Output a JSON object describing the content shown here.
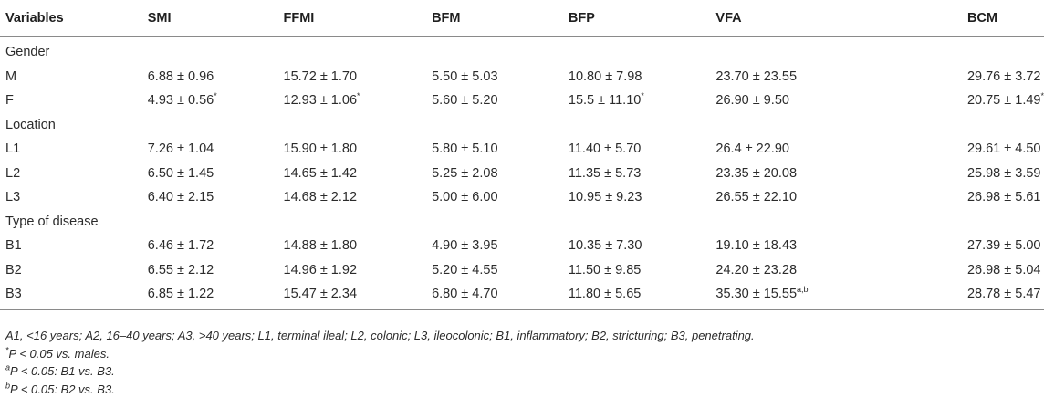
{
  "header": [
    "Variables",
    "SMI",
    "FFMI",
    "BFM",
    "BFP",
    "VFA",
    "BCM"
  ],
  "rows": [
    {
      "type": "section",
      "label": "Gender"
    },
    {
      "type": "data",
      "label": "M",
      "cells": [
        {
          "v": "6.88 ± 0.96",
          "s": ""
        },
        {
          "v": "15.72 ± 1.70",
          "s": ""
        },
        {
          "v": "5.50 ± 5.03",
          "s": ""
        },
        {
          "v": "10.80 ± 7.98",
          "s": ""
        },
        {
          "v": "23.70 ± 23.55",
          "s": ""
        },
        {
          "v": "29.76 ± 3.72",
          "s": ""
        }
      ]
    },
    {
      "type": "data",
      "label": "F",
      "cells": [
        {
          "v": "4.93 ± 0.56",
          "s": "*"
        },
        {
          "v": "12.93 ± 1.06",
          "s": "*"
        },
        {
          "v": "5.60 ± 5.20",
          "s": ""
        },
        {
          "v": "15.5 ± 11.10",
          "s": "*"
        },
        {
          "v": "26.90 ± 9.50",
          "s": ""
        },
        {
          "v": "20.75 ± 1.49",
          "s": "*"
        }
      ]
    },
    {
      "type": "section",
      "label": "Location"
    },
    {
      "type": "data",
      "label": "L1",
      "cells": [
        {
          "v": "7.26 ± 1.04",
          "s": ""
        },
        {
          "v": "15.90 ± 1.80",
          "s": ""
        },
        {
          "v": "5.80 ± 5.10",
          "s": ""
        },
        {
          "v": "11.40 ± 5.70",
          "s": ""
        },
        {
          "v": "26.4 ± 22.90",
          "s": ""
        },
        {
          "v": "29.61 ± 4.50",
          "s": ""
        }
      ]
    },
    {
      "type": "data",
      "label": "L2",
      "cells": [
        {
          "v": "6.50 ± 1.45",
          "s": ""
        },
        {
          "v": "14.65 ± 1.42",
          "s": ""
        },
        {
          "v": "5.25 ± 2.08",
          "s": ""
        },
        {
          "v": "11.35 ± 5.73",
          "s": ""
        },
        {
          "v": "23.35 ± 20.08",
          "s": ""
        },
        {
          "v": "25.98 ± 3.59",
          "s": ""
        }
      ]
    },
    {
      "type": "data",
      "label": "L3",
      "cells": [
        {
          "v": "6.40 ± 2.15",
          "s": ""
        },
        {
          "v": "14.68 ± 2.12",
          "s": ""
        },
        {
          "v": "5.00 ± 6.00",
          "s": ""
        },
        {
          "v": "10.95 ± 9.23",
          "s": ""
        },
        {
          "v": "26.55 ± 22.10",
          "s": ""
        },
        {
          "v": "26.98 ± 5.61",
          "s": ""
        }
      ]
    },
    {
      "type": "section",
      "label": "Type of disease"
    },
    {
      "type": "data",
      "label": "B1",
      "cells": [
        {
          "v": "6.46 ± 1.72",
          "s": ""
        },
        {
          "v": "14.88 ± 1.80",
          "s": ""
        },
        {
          "v": "4.90 ± 3.95",
          "s": ""
        },
        {
          "v": "10.35 ± 7.30",
          "s": ""
        },
        {
          "v": "19.10 ± 18.43",
          "s": ""
        },
        {
          "v": "27.39 ± 5.00",
          "s": ""
        }
      ]
    },
    {
      "type": "data",
      "label": "B2",
      "cells": [
        {
          "v": "6.55 ± 2.12",
          "s": ""
        },
        {
          "v": "14.96 ± 1.92",
          "s": ""
        },
        {
          "v": "5.20 ± 4.55",
          "s": ""
        },
        {
          "v": "11.50 ± 9.85",
          "s": ""
        },
        {
          "v": "24.20 ± 23.28",
          "s": ""
        },
        {
          "v": "26.98 ± 5.04",
          "s": ""
        }
      ]
    },
    {
      "type": "data",
      "label": "B3",
      "cells": [
        {
          "v": "6.85 ± 1.22",
          "s": ""
        },
        {
          "v": "15.47 ± 2.34",
          "s": ""
        },
        {
          "v": "6.80 ± 4.70",
          "s": ""
        },
        {
          "v": "11.80 ± 5.65",
          "s": ""
        },
        {
          "v": "35.30 ± 15.55",
          "s": "a,b"
        },
        {
          "v": "28.78 ± 5.47",
          "s": ""
        }
      ]
    }
  ],
  "notes": [
    {
      "sup": "",
      "text": "A1, <16 years; A2, 16–40 years; A3, >40 years; L1, terminal ileal; L2, colonic; L3, ileocolonic; B1, inflammatory; B2, stricturing; B3, penetrating."
    },
    {
      "sup": "*",
      "text": "P < 0.05 vs. males."
    },
    {
      "sup": "a",
      "text": "P < 0.05: B1 vs. B3."
    },
    {
      "sup": "b",
      "text": "P < 0.05: B2 vs. B3."
    }
  ]
}
